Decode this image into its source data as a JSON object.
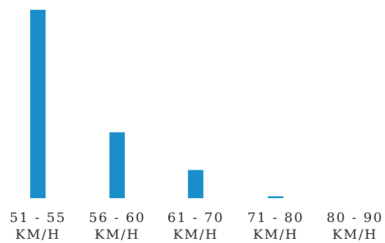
{
  "chart_data": {
    "type": "bar",
    "title": "",
    "xlabel": "",
    "ylabel": "",
    "categories": [
      [
        "51 - 55",
        "KM/H"
      ],
      [
        "56 - 60",
        "KM/H"
      ],
      [
        "61 - 70",
        "KM/H"
      ],
      [
        "71 - 80",
        "KM/H"
      ],
      [
        "80 - 90",
        "KM/H"
      ]
    ],
    "values": [
      100,
      35,
      15,
      1,
      0
    ],
    "ylim": [
      0,
      100
    ],
    "bar_color": "#1a8ec9",
    "grid": false,
    "legend": "none"
  }
}
